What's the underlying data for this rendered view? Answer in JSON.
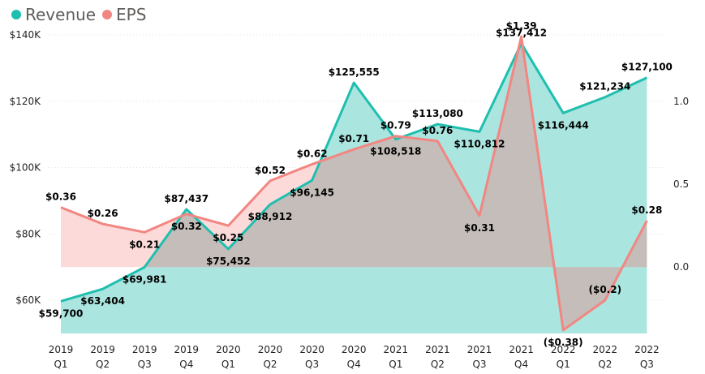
{
  "chart_data": {
    "type": "area",
    "title": "",
    "categories": [
      [
        "2019",
        "Q1"
      ],
      [
        "2019",
        "Q2"
      ],
      [
        "2019",
        "Q3"
      ],
      [
        "2019",
        "Q4"
      ],
      [
        "2020",
        "Q1"
      ],
      [
        "2020",
        "Q2"
      ],
      [
        "2020",
        "Q3"
      ],
      [
        "2020",
        "Q4"
      ],
      [
        "2021",
        "Q1"
      ],
      [
        "2021",
        "Q2"
      ],
      [
        "2021",
        "Q3"
      ],
      [
        "2021",
        "Q4"
      ],
      [
        "2022",
        "Q1"
      ],
      [
        "2022",
        "Q2"
      ],
      [
        "2022",
        "Q3"
      ]
    ],
    "legend": {
      "placement": "top-left",
      "position": "top-left"
    },
    "grid": true,
    "y_left": {
      "min": 50000,
      "max": 140000,
      "ticks": [
        60000,
        80000,
        100000,
        120000,
        140000
      ],
      "tick_labels": [
        "$60K",
        "$80K",
        "$100K",
        "$120K",
        "$140K"
      ]
    },
    "y_right": {
      "min": -0.4,
      "max": 1.4,
      "ticks": [
        0.0,
        0.5,
        1.0
      ],
      "tick_labels": [
        "0.0",
        "0.5",
        "1.0"
      ]
    },
    "series": [
      {
        "name": "Revenue",
        "axis": "left",
        "color": "#1fbfaf",
        "fill": "#abe5df",
        "values": [
          59700,
          63404,
          69981,
          87437,
          75452,
          88912,
          96145,
          125555,
          108518,
          113080,
          110812,
          137412,
          116444,
          121234,
          127100
        ],
        "labels": [
          "$59,700",
          "$63,404",
          "$69,981",
          "$87,437",
          "$75,452",
          "$88,912",
          "$96,145",
          "$125,555",
          "$108,518",
          "$113,080",
          "$110,812",
          "$137,412",
          "$116,444",
          "$121,234",
          "$127,100"
        ]
      },
      {
        "name": "EPS",
        "axis": "right",
        "color": "#f28682",
        "fill": "#fcd3d2",
        "values": [
          0.36,
          0.26,
          0.21,
          0.32,
          0.25,
          0.52,
          0.62,
          0.71,
          0.79,
          0.76,
          0.31,
          1.39,
          -0.38,
          -0.2,
          0.28
        ],
        "labels": [
          "$0.36",
          "$0.26",
          "$0.21",
          "$0.32",
          "$0.25",
          "$0.52",
          "$0.62",
          "$0.71",
          "$0.79",
          "$0.76",
          "$0.31",
          "$1.39",
          "($0.38)",
          "($0.2)",
          "$0.28"
        ]
      }
    ]
  }
}
